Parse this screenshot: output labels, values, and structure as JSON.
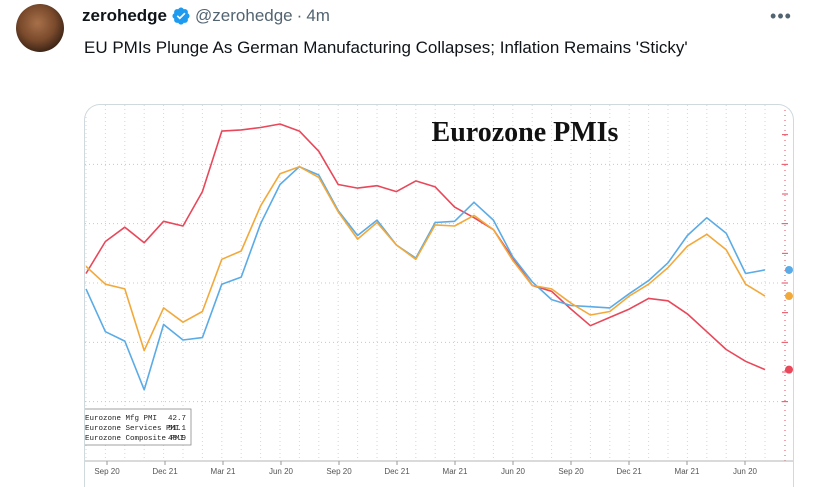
{
  "tweet": {
    "display_name": "zerohedge",
    "handle": "@zerohedge",
    "separator": "·",
    "time": "4m",
    "more_label": "•••",
    "text": "EU PMIs Plunge As German Manufacturing Collapses; Inflation Remains 'Sticky'"
  },
  "chart_data": {
    "type": "line",
    "title": "Eurozone PMIs",
    "x_tick_labels": [
      "Sep 20",
      "Dec 21",
      "Mar 21",
      "Jun 20",
      "Sep 20",
      "Dec 21",
      "Mar 21",
      "Jun 20",
      "Sep 20",
      "Dec 21",
      "Mar 21",
      "Jun 20"
    ],
    "grid": true,
    "legend_position": "bottom-left",
    "series": [
      {
        "name": "Eurozone Mfg PMI",
        "legend_value": "42.7",
        "color": "#e8485a",
        "values": [
          50.8,
          53.5,
          54.7,
          53.4,
          55.2,
          54.8,
          57.7,
          62.8,
          62.9,
          63.1,
          63.4,
          62.8,
          61.1,
          58.3,
          58.0,
          58.2,
          57.7,
          58.6,
          58.1,
          56.4,
          55.5,
          54.5,
          52.1,
          49.8,
          49.3,
          47.8,
          46.4,
          47.1,
          47.8,
          48.7,
          48.5,
          47.4,
          45.9,
          44.4,
          43.4,
          42.7
        ]
      },
      {
        "name": "Eurozone Services PMI",
        "legend_value": "51.1",
        "color": "#5aabe6",
        "values": [
          49.5,
          45.9,
          45.1,
          41.0,
          46.5,
          45.2,
          45.4,
          49.9,
          50.5,
          55.0,
          58.3,
          59.8,
          59.1,
          56.1,
          54.0,
          55.3,
          53.2,
          52.1,
          55.1,
          55.2,
          56.8,
          55.3,
          52.2,
          50.1,
          48.6,
          48.1,
          48.0,
          47.9,
          49.1,
          50.2,
          51.7,
          54.0,
          55.5,
          54.2,
          50.8,
          51.1
        ]
      },
      {
        "name": "Eurozone Composite PMI",
        "legend_value": "48.9",
        "color": "#f2a93b",
        "values": [
          51.4,
          49.9,
          49.5,
          44.3,
          47.9,
          46.7,
          47.6,
          52.0,
          52.7,
          56.5,
          59.2,
          59.8,
          58.9,
          56.0,
          53.7,
          55.1,
          53.2,
          52.0,
          54.9,
          54.8,
          55.7,
          54.5,
          51.9,
          49.8,
          49.5,
          48.3,
          47.3,
          47.6,
          48.9,
          49.9,
          51.3,
          53.1,
          54.1,
          52.8,
          49.9,
          48.9
        ]
      }
    ]
  }
}
